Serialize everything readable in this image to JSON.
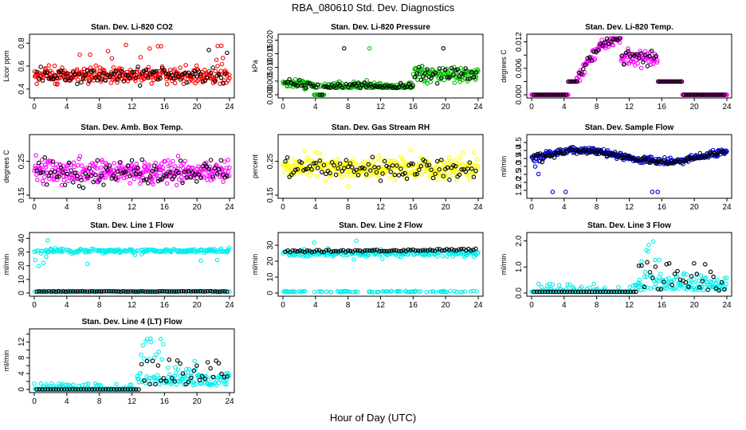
{
  "figure": {
    "title": "RBA_080610  Std. Dev. Diagnostics",
    "xlabel": "Hour of Day (UTC)"
  },
  "chart_data": [
    {
      "type": "scatter",
      "title": "Stan. Dev. Li-820 CO2",
      "ylabel": "Licor ppm",
      "color": "#ff0000",
      "xlim": [
        0,
        24
      ],
      "ylim": [
        0.35,
        0.85
      ],
      "xticks": [
        0,
        4,
        8,
        12,
        16,
        20,
        24
      ],
      "yticks": [
        0.4,
        0.6,
        0.8
      ],
      "ytick_labels": [
        "0.4",
        "0.6",
        "0.8"
      ],
      "n": 320,
      "nblack": 95,
      "gen": "co2"
    },
    {
      "type": "scatter",
      "title": "Stan. Dev. Li-820 Pressure",
      "ylabel": "kPa",
      "color": "#00bb00",
      "xlim": [
        0,
        24
      ],
      "ylim": [
        0,
        0.021
      ],
      "xticks": [
        0,
        4,
        8,
        12,
        16,
        20,
        24
      ],
      "yticks": [
        0,
        0.005,
        0.01,
        0.015,
        0.02
      ],
      "ytick_labels": [
        "0.000",
        "0.005",
        "0.010",
        "0.015",
        "0.020"
      ],
      "n": 320,
      "nblack": 95,
      "gen": "press"
    },
    {
      "type": "scatter",
      "title": "Stan. Dev. Li-820 Temp.",
      "ylabel": "degrees C",
      "color": "#ff00ff",
      "xlim": [
        0,
        24
      ],
      "ylim": [
        0,
        0.013
      ],
      "xticks": [
        0,
        4,
        8,
        12,
        16,
        20,
        24
      ],
      "yticks": [
        0,
        0.003,
        0.006,
        0.009,
        0.012
      ],
      "ytick_labels": [
        "0.000",
        "",
        "0.006",
        "",
        "0.012"
      ],
      "n": 300,
      "nblack": 90,
      "gen": "temp"
    },
    {
      "type": "scatter",
      "title": "Stan. Dev. Amb. Box Temp.",
      "ylabel": "degrees C",
      "color": "#ff00ff",
      "xlim": [
        0,
        24
      ],
      "ylim": [
        0.15,
        0.32
      ],
      "xticks": [
        0,
        4,
        8,
        12,
        16,
        20,
        24
      ],
      "yticks": [
        0.15,
        0.25
      ],
      "ytick_labels": [
        "0.15",
        "0.25"
      ],
      "n": 320,
      "nblack": 95,
      "gen": "box"
    },
    {
      "type": "scatter",
      "title": "Stan. Dev. Gas Stream RH",
      "ylabel": "percent",
      "color": "#ffff00",
      "xlim": [
        0,
        24
      ],
      "ylim": [
        0.15,
        0.32
      ],
      "xticks": [
        0,
        4,
        8,
        12,
        16,
        20,
        24
      ],
      "yticks": [
        0.15,
        0.25
      ],
      "ytick_labels": [
        "0.15",
        "0.25"
      ],
      "n": 320,
      "nblack": 95,
      "gen": "rh"
    },
    {
      "type": "scatter",
      "title": "Stan. Dev. Sample Flow",
      "ylabel": "ml/min",
      "color": "#0000cc",
      "xlim": [
        0,
        24
      ],
      "ylim": [
        1.2,
        4.8
      ],
      "xticks": [
        0,
        4,
        8,
        12,
        16,
        20,
        24
      ],
      "yticks": [
        1.5,
        2,
        2.5,
        3,
        3.5,
        4,
        4.5
      ],
      "ytick_labels": [
        "1.5",
        "2.0",
        "2.5",
        "3.0",
        "3.5",
        "4.0",
        "4.5"
      ],
      "n": 320,
      "nblack": 95,
      "gen": "flow"
    },
    {
      "type": "scatter",
      "title": "Stan. Dev. Line 1 Flow",
      "ylabel": "ml/min",
      "color": "#00eeee",
      "xlim": [
        0,
        24
      ],
      "ylim": [
        0,
        42
      ],
      "xticks": [
        0,
        4,
        8,
        12,
        16,
        20,
        24
      ],
      "yticks": [
        0,
        10,
        20,
        30,
        40
      ],
      "ytick_labels": [
        "0",
        "10",
        "20",
        "30",
        "40"
      ],
      "n": 320,
      "nblack": 80,
      "gen": "line1"
    },
    {
      "type": "scatter",
      "title": "Stan. Dev. Line 2 Flow",
      "ylabel": "ml/min",
      "color": "#00eeee",
      "xlim": [
        0,
        24
      ],
      "ylim": [
        0,
        36
      ],
      "xticks": [
        0,
        4,
        8,
        12,
        16,
        20,
        24
      ],
      "yticks": [
        0,
        10,
        20,
        30
      ],
      "ytick_labels": [
        "0",
        "10",
        "20",
        "30"
      ],
      "n": 320,
      "nblack": 80,
      "gen": "line2"
    },
    {
      "type": "scatter",
      "title": "Stan. Dev. Line 3 Flow",
      "ylabel": "ml/min",
      "color": "#00eeee",
      "xlim": [
        0,
        24
      ],
      "ylim": [
        0,
        2.2
      ],
      "xticks": [
        0,
        4,
        8,
        12,
        16,
        20,
        24
      ],
      "yticks": [
        0,
        1,
        2
      ],
      "ytick_labels": [
        "0.0",
        "1.0",
        "2.0"
      ],
      "n": 260,
      "nblack": 70,
      "gen": "line3"
    },
    {
      "type": "scatter",
      "title": "Stan. Dev. Line 4 (LT) Flow",
      "ylabel": "ml/min",
      "color": "#00eeee",
      "xlim": [
        0,
        24
      ],
      "ylim": [
        0,
        14.5
      ],
      "xticks": [
        0,
        4,
        8,
        12,
        16,
        20,
        24
      ],
      "yticks": [
        0,
        2,
        4,
        6,
        8,
        10,
        12,
        14
      ],
      "ytick_labels": [
        "0",
        "",
        "4",
        "",
        "8",
        "",
        "12",
        ""
      ],
      "n": 260,
      "nblack": 70,
      "gen": "line4"
    }
  ]
}
